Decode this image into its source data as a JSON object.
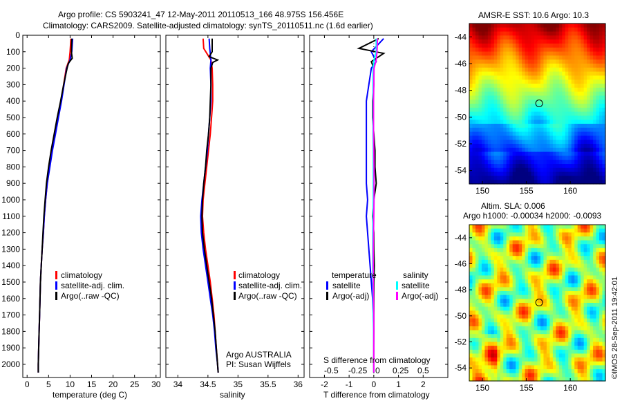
{
  "header": {
    "line1": "Argo profile: CS 5903241_47 12-May-2011 20110513_166 48.975S 156.456E",
    "line2": "Climatology: CARS2009. Satellite-adjusted climatology: synTS_20110511.nc (1.6d earlier)"
  },
  "side_caption": "©IMOS 28-Sep-2011 19:42:01",
  "colors": {
    "climatology": "#ff0000",
    "satellite": "#0000ff",
    "argo": "#000000",
    "sat_salinity": "#00ffff",
    "argo_salinity": "#ff00ff"
  },
  "legend": {
    "climatology": "climatology",
    "satellite_adj": "satellite-adj. clim.",
    "argo_raw": "Argo(..raw -QC)"
  },
  "legend3": {
    "temp_title": "temperature",
    "sal_title": "salinity",
    "satellite": "satellite",
    "argo_adj": "Argo(-adj)"
  },
  "panel2_note": {
    "line1": "Argo AUSTRALIA",
    "line2": "PI: Susan Wijffels"
  },
  "panel3_top": {
    "label": "S difference from climatology",
    "ticks": [
      "-0.5",
      "-0.25",
      "0",
      "0.25",
      "0.5"
    ]
  },
  "map_sst": {
    "title": "AMSR-E SST: 10.6 Argo: 10.3",
    "x_ticks": [
      "150",
      "155",
      "160"
    ],
    "y_ticks": [
      "-44",
      "-46",
      "-48",
      "-50",
      "-52",
      "-54"
    ]
  },
  "map_sla": {
    "title1": "Altim. SLA: 0.006",
    "title2": "Argo h1000: -0.00034 h2000: -0.0093",
    "x_ticks": [
      "150",
      "155",
      "160"
    ],
    "y_ticks": [
      "-44",
      "-46",
      "-48",
      "-50",
      "-52",
      "-54"
    ]
  },
  "chart_data": [
    {
      "type": "line",
      "xlabel": "temperature (deg C)",
      "ylabel": "",
      "xlim": [
        -1,
        31
      ],
      "ylim": [
        2080,
        0
      ],
      "x_ticks": [
        "0",
        "5",
        "10",
        "15",
        "20",
        "25",
        "30"
      ],
      "y_ticks": [
        "0",
        "100",
        "200",
        "300",
        "400",
        "500",
        "600",
        "700",
        "800",
        "900",
        "1000",
        "1100",
        "1200",
        "1300",
        "1400",
        "1500",
        "1600",
        "1700",
        "1800",
        "1900",
        "2000"
      ],
      "series": [
        {
          "name": "climatology",
          "color": "#ff0000",
          "depth": [
            20,
            100,
            150,
            200,
            300,
            400,
            500,
            600,
            700,
            800,
            900,
            1000,
            1100,
            1200,
            1300,
            1400,
            1500,
            1600,
            1700,
            1800,
            1900,
            2000,
            2050
          ],
          "values": [
            10.2,
            10.0,
            9.8,
            9.1,
            8.5,
            7.9,
            7.2,
            6.5,
            5.8,
            5.2,
            4.7,
            4.3,
            4.0,
            3.8,
            3.5,
            3.3,
            3.1,
            3.0,
            2.9,
            2.8,
            2.7,
            2.6,
            2.6
          ]
        },
        {
          "name": "satellite-adj. clim.",
          "color": "#0000ff",
          "depth": [
            20,
            100,
            150,
            200,
            300,
            400,
            500,
            600,
            700,
            800,
            900,
            1000,
            1100,
            1200,
            1300,
            1400,
            1500,
            1600,
            1700,
            1800,
            1900,
            2000,
            2050
          ],
          "values": [
            10.6,
            10.4,
            10.0,
            9.2,
            8.6,
            8.0,
            7.3,
            6.6,
            5.9,
            5.3,
            4.7,
            4.3,
            4.0,
            3.8,
            3.5,
            3.3,
            3.1,
            3.0,
            2.9,
            2.8,
            2.7,
            2.6,
            2.6
          ]
        },
        {
          "name": "Argo(..raw -QC)",
          "color": "#000000",
          "depth": [
            20,
            100,
            140,
            170,
            200,
            300,
            400,
            500,
            600,
            700,
            800,
            900,
            1000,
            1100,
            1200,
            1300,
            1400,
            1500,
            1600,
            1700,
            1800,
            1900,
            2000,
            2050
          ],
          "values": [
            10.4,
            10.3,
            10.5,
            9.6,
            9.3,
            8.5,
            7.8,
            7.0,
            6.3,
            5.6,
            5.0,
            4.5,
            4.2,
            3.9,
            3.7,
            3.5,
            3.3,
            3.1,
            3.0,
            2.9,
            2.8,
            2.7,
            2.6,
            2.6
          ]
        }
      ]
    },
    {
      "type": "line",
      "xlabel": "salinity",
      "ylabel": "",
      "xlim": [
        33.8,
        36.1
      ],
      "ylim": [
        2080,
        0
      ],
      "x_ticks": [
        "34",
        "34.5",
        "35",
        "35.5",
        "36"
      ],
      "series": [
        {
          "name": "climatology",
          "color": "#ff0000",
          "depth": [
            20,
            80,
            150,
            200,
            300,
            400,
            500,
            600,
            700,
            800,
            900,
            1000,
            1100,
            1200,
            1300,
            1400,
            1500,
            1600,
            1700,
            1800,
            1900,
            2000,
            2050
          ],
          "values": [
            34.42,
            34.43,
            34.55,
            34.57,
            34.58,
            34.58,
            34.56,
            34.54,
            34.51,
            34.48,
            34.45,
            34.42,
            34.41,
            34.43,
            34.46,
            34.5,
            34.54,
            34.57,
            34.6,
            34.62,
            34.64,
            34.66,
            34.67
          ]
        },
        {
          "name": "satellite-adj. clim.",
          "color": "#0000ff",
          "depth": [
            20,
            80,
            150,
            200,
            300,
            400,
            500,
            600,
            700,
            800,
            900,
            1000,
            1100,
            1200,
            1300,
            1400,
            1500,
            1600,
            1700,
            1800,
            1900,
            2000,
            2050
          ],
          "values": [
            34.52,
            34.53,
            34.55,
            34.54,
            34.55,
            34.55,
            34.53,
            34.51,
            34.49,
            34.46,
            34.43,
            34.4,
            34.38,
            34.39,
            34.42,
            34.46,
            34.5,
            34.54,
            34.58,
            34.61,
            34.63,
            34.66,
            34.67
          ]
        },
        {
          "name": "Argo(..raw -QC)",
          "color": "#000000",
          "depth": [
            20,
            100,
            130,
            150,
            165,
            200,
            300,
            400,
            500,
            600,
            700,
            800,
            900,
            1000,
            1100,
            1200,
            1300,
            1400,
            1500,
            1600,
            1700,
            1800,
            1900,
            2000,
            2050
          ],
          "values": [
            34.57,
            34.57,
            34.52,
            34.66,
            34.58,
            34.55,
            34.55,
            34.54,
            34.53,
            34.51,
            34.48,
            34.46,
            34.43,
            34.41,
            34.4,
            34.41,
            34.44,
            34.48,
            34.52,
            34.56,
            34.59,
            34.62,
            34.64,
            34.66,
            34.67
          ]
        }
      ]
    },
    {
      "type": "line",
      "xlabel": "T difference from climatology",
      "ylabel": "",
      "xlim": [
        -2.6,
        3.0
      ],
      "ylim": [
        2080,
        0
      ],
      "x_ticks": [
        "-2",
        "-1",
        "0",
        "1",
        "2"
      ],
      "series": [
        {
          "name": "temperature satellite",
          "color": "#0000ff",
          "depth": [
            20,
            100,
            160,
            200,
            300,
            400,
            500,
            600,
            700,
            800,
            900,
            1000,
            1100,
            1200,
            1300,
            1400,
            1500,
            1600,
            1700,
            1800,
            1900,
            2000,
            2050
          ],
          "values": [
            0.4,
            -0.1,
            0.1,
            -0.1,
            -0.2,
            -0.3,
            -0.3,
            -0.3,
            -0.3,
            -0.3,
            -0.3,
            -0.25,
            -0.3,
            -0.25,
            -0.2,
            -0.15,
            -0.1,
            -0.05,
            -0.02,
            0,
            0,
            0,
            0
          ]
        },
        {
          "name": "temperature Argo(-adj)",
          "color": "#000000",
          "depth": [
            20,
            80,
            110,
            160,
            200,
            300,
            400,
            500,
            600,
            700,
            800,
            900,
            1000,
            1100,
            1200,
            1300,
            1400,
            1500,
            1600,
            1700,
            1800,
            1900,
            2000,
            2050
          ],
          "values": [
            0.2,
            -0.6,
            0.4,
            -0.1,
            0.0,
            0.0,
            -0.05,
            -0.05,
            0.0,
            0.05,
            0.05,
            0.1,
            0.0,
            -0.05,
            0.0,
            0.0,
            0.02,
            0.0,
            0.0,
            0.0,
            0.0,
            0.0,
            0.0,
            0.0
          ]
        },
        {
          "name": "salinity satellite",
          "color": "#00ffff",
          "depth": [
            20,
            100,
            150,
            200,
            300,
            400,
            500,
            600,
            700,
            800,
            900,
            1000,
            1100,
            1200,
            1300,
            1400,
            1500,
            1600,
            1700,
            1800,
            1900,
            2000,
            2050
          ],
          "values": [
            0.1,
            0.1,
            0.01,
            -0.03,
            -0.03,
            -0.03,
            -0.03,
            -0.03,
            -0.02,
            -0.02,
            -0.02,
            -0.02,
            -0.03,
            -0.04,
            -0.04,
            -0.04,
            -0.04,
            -0.03,
            -0.02,
            -0.01,
            0,
            0,
            0
          ]
        },
        {
          "name": "salinity Argo(-adj)",
          "color": "#ff00ff",
          "depth": [
            20,
            100,
            150,
            200,
            300,
            400,
            500,
            600,
            700,
            800,
            900,
            1000,
            1100,
            1200,
            1300,
            1400,
            1500,
            1600,
            1700,
            1800,
            1900,
            2000,
            2050
          ],
          "values": [
            0.15,
            0.13,
            0.1,
            0.01,
            0.0,
            -0.01,
            -0.01,
            -0.01,
            0.0,
            0.01,
            0.01,
            0.01,
            0.0,
            -0.01,
            -0.02,
            -0.02,
            -0.02,
            -0.01,
            0,
            0,
            0,
            0,
            0
          ]
        }
      ]
    },
    {
      "type": "heatmap",
      "title": "AMSR-E SST: 10.6 Argo: 10.3",
      "xlim": [
        148.5,
        164.0
      ],
      "ylim": [
        -55.0,
        -43.0
      ],
      "marker": {
        "lon": 156.456,
        "lat": -48.975
      }
    },
    {
      "type": "heatmap",
      "title": "Altim. SLA: 0.006",
      "xlim": [
        148.5,
        164.0
      ],
      "ylim": [
        -55.0,
        -43.0
      ],
      "marker": {
        "lon": 156.456,
        "lat": -48.975
      }
    }
  ]
}
